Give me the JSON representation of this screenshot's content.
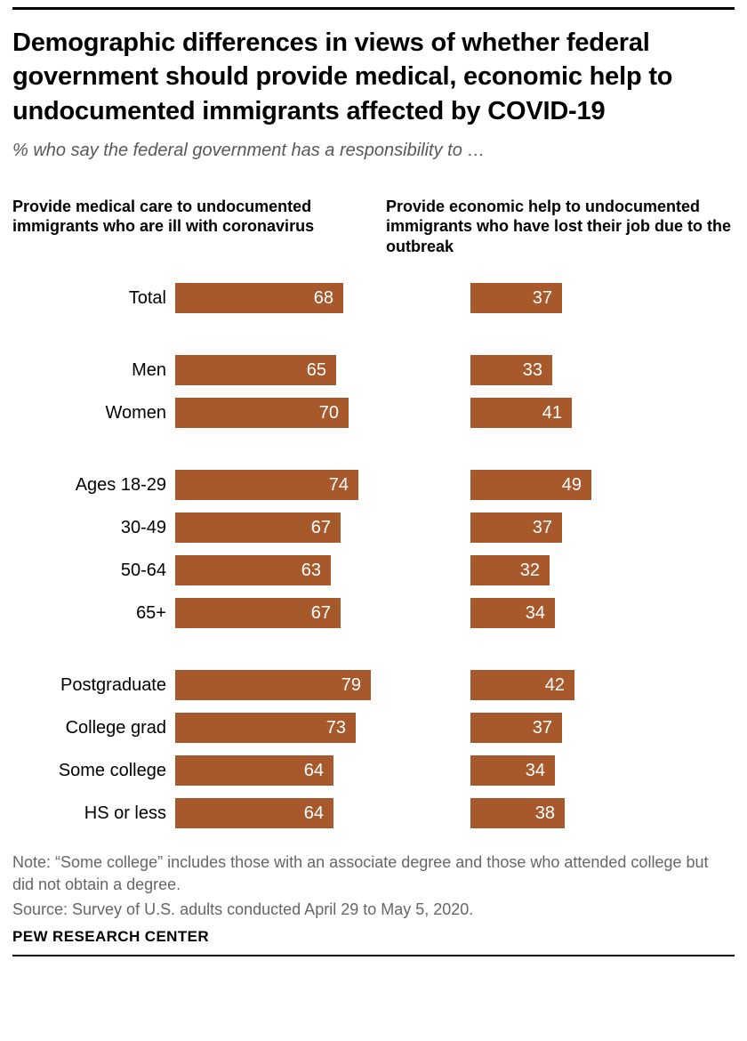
{
  "title": "Demographic differences in views of whether federal government should provide medical, economic help to undocumented immigrants affected by COVID-19",
  "subtitle": "% who say the federal government has a responsibility to …",
  "chart_data": {
    "type": "bar",
    "orientation": "horizontal",
    "categories": [
      "Total",
      "Men",
      "Women",
      "Ages 18-29",
      "30-49",
      "50-64",
      "65+",
      "Postgraduate",
      "College grad",
      "Some college",
      "HS or less"
    ],
    "groups": [
      [
        0
      ],
      [
        1,
        2
      ],
      [
        3,
        4,
        5,
        6
      ],
      [
        7,
        8,
        9,
        10
      ]
    ],
    "series": [
      {
        "name": "Provide medical care to undocumented immigrants who are ill with coronavirus",
        "values": [
          68,
          65,
          70,
          74,
          67,
          63,
          67,
          79,
          73,
          64,
          64
        ]
      },
      {
        "name": "Provide economic help to undocumented immigrants who have lost their job due to the outbreak",
        "values": [
          37,
          33,
          41,
          49,
          37,
          32,
          34,
          42,
          37,
          34,
          38
        ]
      }
    ],
    "xlim": [
      0,
      100
    ],
    "grid": false,
    "legend_position": "column-headers",
    "colors": {
      "bar": "#a8592c",
      "value_label": "#ffffff",
      "subtitle_gray": "#58585a",
      "note_gray": "#666666"
    }
  },
  "note": "Note: “Some college” includes those with an associate degree and those who attended college but did not obtain a degree.",
  "source": "Source: Survey of U.S. adults conducted April 29 to May 5, 2020.",
  "footer": "PEW RESEARCH CENTER"
}
